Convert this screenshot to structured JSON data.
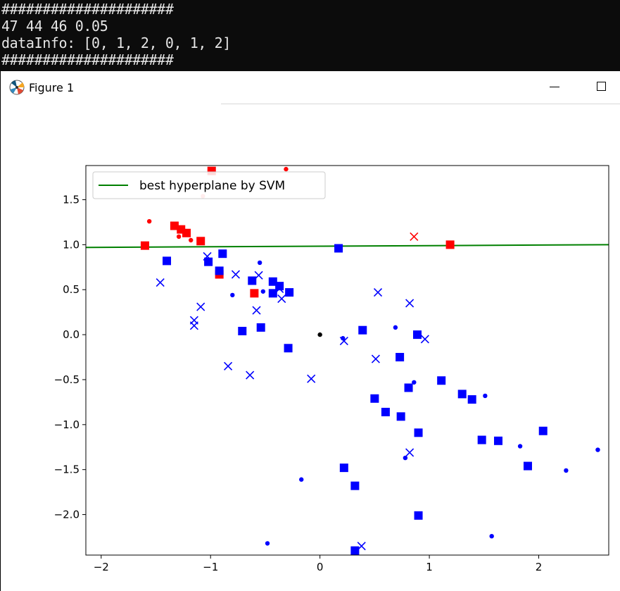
{
  "console": {
    "lines": [
      "#####################",
      "47 44 46 0.05",
      "dataInfo: [0, 1, 2, 0, 1, 2]",
      "#####################"
    ]
  },
  "window": {
    "title": "Figure 1",
    "icons": {
      "app": "matplotlib-icon",
      "minimize": "minimize-icon",
      "maximize": "maximize-icon"
    }
  },
  "chart_data": {
    "type": "scatter",
    "xlim": [
      -2.14,
      2.64
    ],
    "ylim": [
      -2.45,
      1.88
    ],
    "xticks": [
      -2,
      -1,
      0,
      1,
      2
    ],
    "xtick_labels": [
      "−2",
      "−1",
      "0",
      "1",
      "2"
    ],
    "yticks": [
      1.5,
      1.0,
      0.5,
      0.0,
      -0.5,
      -1.0,
      -1.5,
      -2.0
    ],
    "ytick_labels": [
      "1.5",
      "1.0",
      "0.5",
      "0.0",
      "−0.5",
      "−1.0",
      "−1.5",
      "−2.0"
    ],
    "legend": {
      "position": "top-left",
      "entries": [
        {
          "label": "best hyperplane by SVM",
          "color": "#008000"
        }
      ]
    },
    "hyperplane": {
      "x": [
        -2.14,
        2.64
      ],
      "y": [
        0.97,
        1.0
      ],
      "color": "#008000"
    },
    "groups": [
      {
        "color": "#ff0000",
        "marker": "square",
        "points": [
          [
            -1.6,
            0.99
          ],
          [
            -1.33,
            1.21
          ],
          [
            -1.27,
            1.17
          ],
          [
            -1.22,
            1.13
          ],
          [
            -1.09,
            1.04
          ],
          [
            -0.92,
            0.67
          ],
          [
            -0.6,
            0.46
          ],
          [
            1.19,
            1.0
          ],
          [
            -0.99,
            1.82
          ]
        ]
      },
      {
        "color": "#ff0000",
        "marker": "dot",
        "points": [
          [
            -1.56,
            1.26
          ],
          [
            -1.29,
            1.09
          ],
          [
            -1.18,
            1.05
          ],
          [
            -0.31,
            1.84
          ]
        ]
      },
      {
        "color": "#ff8080",
        "marker": "dot",
        "points": [
          [
            -1.07,
            1.54
          ]
        ]
      },
      {
        "color": "#ff0000",
        "marker": "x",
        "points": [
          [
            0.86,
            1.09
          ]
        ]
      },
      {
        "color": "#0000ff",
        "marker": "square",
        "points": [
          [
            -1.4,
            0.82
          ],
          [
            -1.02,
            0.81
          ],
          [
            -0.92,
            0.71
          ],
          [
            -0.89,
            0.9
          ],
          [
            -0.62,
            0.6
          ],
          [
            -0.43,
            0.59
          ],
          [
            -0.37,
            0.54
          ],
          [
            -0.43,
            0.46
          ],
          [
            -0.28,
            0.47
          ],
          [
            -0.71,
            0.04
          ],
          [
            -0.54,
            0.08
          ],
          [
            -0.29,
            -0.15
          ],
          [
            0.17,
            0.96
          ],
          [
            0.39,
            0.05
          ],
          [
            0.73,
            -0.25
          ],
          [
            0.89,
            0.0
          ],
          [
            0.81,
            -0.59
          ],
          [
            1.11,
            -0.51
          ],
          [
            0.5,
            -0.71
          ],
          [
            0.6,
            -0.86
          ],
          [
            0.74,
            -0.91
          ],
          [
            0.9,
            -1.09
          ],
          [
            1.3,
            -0.66
          ],
          [
            1.39,
            -0.72
          ],
          [
            1.48,
            -1.17
          ],
          [
            1.63,
            -1.18
          ],
          [
            2.04,
            -1.07
          ],
          [
            1.9,
            -1.46
          ],
          [
            0.22,
            -1.48
          ],
          [
            0.32,
            -1.68
          ],
          [
            0.9,
            -2.01
          ],
          [
            0.32,
            -2.4
          ]
        ]
      },
      {
        "color": "#0000ff",
        "marker": "dot",
        "points": [
          [
            -0.55,
            0.8
          ],
          [
            -0.8,
            0.44
          ],
          [
            -0.52,
            0.48
          ],
          [
            0.69,
            0.08
          ],
          [
            0.86,
            -0.53
          ],
          [
            1.51,
            -0.68
          ],
          [
            0.21,
            -0.04
          ],
          [
            -0.17,
            -1.61
          ],
          [
            -0.48,
            -2.32
          ],
          [
            0.78,
            -1.37
          ],
          [
            1.83,
            -1.24
          ],
          [
            2.25,
            -1.51
          ],
          [
            2.54,
            -1.28
          ],
          [
            1.57,
            -2.24
          ]
        ]
      },
      {
        "color": "#000000",
        "marker": "dot",
        "points": [
          [
            0.0,
            0.0
          ]
        ]
      },
      {
        "color": "#0000ff",
        "marker": "x",
        "points": [
          [
            -1.46,
            0.58
          ],
          [
            -1.09,
            0.31
          ],
          [
            -1.15,
            0.16
          ],
          [
            -1.15,
            0.1
          ],
          [
            -1.03,
            0.87
          ],
          [
            -0.77,
            0.67
          ],
          [
            -0.56,
            0.66
          ],
          [
            -0.58,
            0.27
          ],
          [
            -0.84,
            -0.35
          ],
          [
            -0.64,
            -0.45
          ],
          [
            -0.37,
            0.51
          ],
          [
            -0.35,
            0.4
          ],
          [
            -0.08,
            -0.49
          ],
          [
            0.22,
            -0.07
          ],
          [
            0.53,
            0.47
          ],
          [
            0.51,
            -0.27
          ],
          [
            0.82,
            0.35
          ],
          [
            0.96,
            -0.05
          ],
          [
            0.82,
            -1.31
          ],
          [
            0.38,
            -2.35
          ]
        ]
      }
    ]
  }
}
